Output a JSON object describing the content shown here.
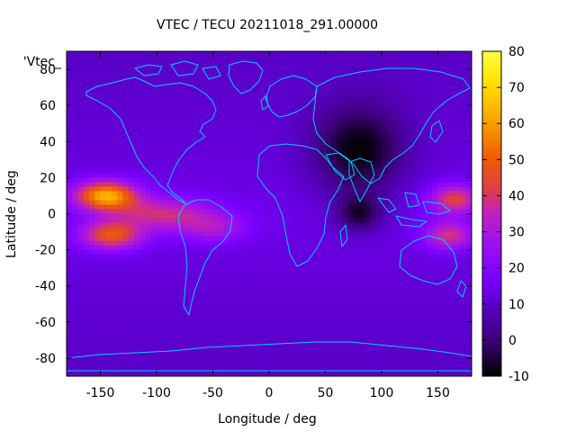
{
  "chart_data": {
    "type": "heatmap",
    "title": "VTEC / TECU 20211018_291.00000",
    "xlabel": "Longitude / deg",
    "ylabel": "Latitude / deg",
    "legend_label": "'Vtec_",
    "xlim": [
      -180,
      180
    ],
    "ylim": [
      -90,
      90
    ],
    "x_ticks": [
      -150,
      -100,
      -50,
      0,
      50,
      100,
      150
    ],
    "x_tick_labels": [
      "-150",
      "-100",
      "-50",
      "0",
      "50",
      "100",
      "150"
    ],
    "y_ticks": [
      -80,
      -60,
      -40,
      -20,
      0,
      20,
      40,
      60,
      80
    ],
    "y_tick_labels": [
      "-80",
      "-60",
      "-40",
      "-20",
      "0",
      "20",
      "40",
      "60",
      "80"
    ],
    "colorbar": {
      "range": [
        -10,
        80
      ],
      "ticks": [
        -10,
        0,
        10,
        20,
        30,
        40,
        50,
        60,
        70,
        80
      ],
      "tick_labels": [
        "-10",
        "0",
        "10",
        "20",
        "30",
        "40",
        "50",
        "60",
        "70",
        "80"
      ]
    },
    "background_vtec": 14,
    "features": [
      {
        "name": "pacific-crest-north",
        "lon": -145,
        "lat": 10,
        "peak_vtec": 63,
        "lon_width": 28,
        "lat_width": 8
      },
      {
        "name": "pacific-crest-south",
        "lon": -140,
        "lat": -12,
        "peak_vtec": 48,
        "lon_width": 28,
        "lat_width": 8
      },
      {
        "name": "pacific-tail",
        "lon": -95,
        "lat": 0,
        "peak_vtec": 38,
        "lon_width": 45,
        "lat_width": 9
      },
      {
        "name": "south-america-band",
        "lon": -50,
        "lat": -8,
        "peak_vtec": 30,
        "lon_width": 30,
        "lat_width": 8
      },
      {
        "name": "west-pacific-north",
        "lon": 165,
        "lat": 8,
        "peak_vtec": 44,
        "lon_width": 22,
        "lat_width": 8
      },
      {
        "name": "west-pacific-south",
        "lon": 160,
        "lat": -12,
        "peak_vtec": 40,
        "lon_width": 22,
        "lat_width": 8
      },
      {
        "name": "asia-depletion",
        "lon": 80,
        "lat": 35,
        "peak_vtec": -8,
        "lon_width": 40,
        "lat_width": 25
      },
      {
        "name": "india-depletion",
        "lon": 80,
        "lat": 0,
        "peak_vtec": -4,
        "lon_width": 20,
        "lat_width": 10
      }
    ],
    "overlay": "continent outlines (cyan)",
    "colors": {
      "overlay": "#00ccff",
      "colormap": [
        "#000000",
        "#3c0078",
        "#5a00c8",
        "#7a00ff",
        "#9a10f0",
        "#c020c0",
        "#e04040",
        "#f06000",
        "#f8a000",
        "#ffe000",
        "#ffff40"
      ]
    }
  }
}
